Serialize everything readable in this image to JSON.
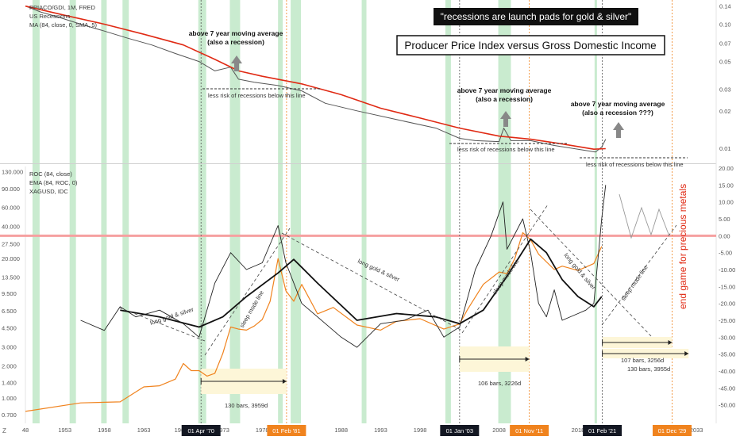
{
  "colors": {
    "recession": "#b7e4bf",
    "ma": "#e02a14",
    "ppi": "#555555",
    "xag": "#f0831e",
    "ema": "#111111",
    "roc": "#222222",
    "zero": "#f6a0a0",
    "vline": "#f0831e",
    "box": "#fdf6d8"
  },
  "top_pane": {
    "legend": [
      "PPIACO/GDI, 1M, FRED",
      "US Recessions",
      "MA (84, close, 0, SMA, 5)"
    ],
    "y_ticks": [
      "0.14",
      "0.10",
      "0.07",
      "0.05",
      "0.03",
      "0.02",
      "0.01"
    ],
    "title_quote": "\"recessions are launch pads for gold & silver\"",
    "title_main": "Producer Price Index versus Gross Domestic Income",
    "annotations": [
      {
        "line1": "above 7 year moving average",
        "line2": "(also a recession)"
      },
      {
        "line1": "above 7 year moving average",
        "line2": "(also a recession)"
      },
      {
        "line1": "above 7 year moving average",
        "line2": "(also a recession ???)"
      }
    ],
    "notes": [
      "less risk of recessions below this line",
      "less risk of recessions below this line",
      "less risk of recessions below this line"
    ]
  },
  "bottom_pane": {
    "legend": [
      "ROC (84, close)",
      "EMA (84, ROC, 0)",
      "XAGUSD, IDC"
    ],
    "y_left_ticks": [
      "130.000",
      "90.000",
      "60.000",
      "40.000",
      "27.500",
      "20.000",
      "13.500",
      "9.500",
      "6.500",
      "4.500",
      "3.000",
      "2.000",
      "1.400",
      "1.000",
      "0.700"
    ],
    "y_right_ticks": [
      "20.00",
      "15.00",
      "10.00",
      "5.00",
      "0.00",
      "-5.00",
      "-10.00",
      "-15.00",
      "-20.00",
      "-25.00",
      "-30.00",
      "-35.00",
      "-40.00",
      "-45.00",
      "-50.00"
    ],
    "diagonal_labels": [
      "long gold & silver",
      "sleep mode line",
      "long gold & silver",
      "sleep mode line",
      "long gold & silver",
      "sleep mode line"
    ],
    "measures": [
      "130 bars, 3959d",
      "106 bars, 3226d",
      "107 bars, 3256d",
      "130 bars, 3955d"
    ],
    "side_text": "end game for precious metals"
  },
  "x_axis": {
    "ticks": [
      "48",
      "1953",
      "1958",
      "1963",
      "196",
      "1973",
      "1978",
      "1988",
      "1993",
      "1998",
      "2008",
      "2018",
      "'23",
      "20",
      "2033"
    ],
    "markers": [
      {
        "label": "01 Apr '70",
        "style": "dark"
      },
      {
        "label": "01 Feb '81",
        "style": "orange"
      },
      {
        "label": "01 Jan '03",
        "style": "dark"
      },
      {
        "label": "01 Nov '11",
        "style": "orange"
      },
      {
        "label": "01 Feb '21",
        "style": "dark"
      },
      {
        "label": "01 Dec '29",
        "style": "orange"
      }
    ],
    "z_label": "Z"
  },
  "chart_data": [
    {
      "type": "line",
      "title": "Producer Price Index versus Gross Domestic Income",
      "yscale": "log",
      "x_range": [
        1948,
        2035
      ],
      "ylim": [
        0.008,
        0.15
      ],
      "recessions": [
        [
          1948.9,
          1949.8
        ],
        [
          1953.6,
          1954.4
        ],
        [
          1957.6,
          1958.3
        ],
        [
          1960.3,
          1961.1
        ],
        [
          1969.9,
          1970.9
        ],
        [
          1973.9,
          1975.2
        ],
        [
          1980.0,
          1980.6
        ],
        [
          1981.6,
          1982.9
        ],
        [
          1990.6,
          1991.2
        ],
        [
          2001.2,
          2001.9
        ],
        [
          2007.9,
          2009.5
        ],
        [
          2020.1,
          2020.4
        ]
      ],
      "series": [
        {
          "name": "PPIACO/GDI",
          "x": [
            1948,
            1950,
            1952,
            1955,
            1958,
            1961,
            1964,
            1967,
            1970,
            1972,
            1974,
            1975,
            1977,
            1980,
            1983,
            1986,
            1990,
            1995,
            2000,
            2003,
            2005,
            2008,
            2008.6,
            2009.5,
            2012,
            2015,
            2018,
            2020.2,
            2021,
            2021.5
          ],
          "y": [
            0.14,
            0.125,
            0.115,
            0.1,
            0.088,
            0.077,
            0.068,
            0.058,
            0.05,
            0.042,
            0.045,
            0.036,
            0.034,
            0.032,
            0.029,
            0.023,
            0.02,
            0.017,
            0.0145,
            0.012,
            0.0115,
            0.0113,
            0.0145,
            0.0115,
            0.0115,
            0.0105,
            0.0098,
            0.0093,
            0.0102,
            0.0118
          ]
        },
        {
          "name": "MA (84, close, 0, SMA, 5)",
          "x": [
            1948,
            1953,
            1958,
            1963,
            1968,
            1972,
            1975,
            1978,
            1983,
            1988,
            1993,
            1998,
            2003,
            2008,
            2012,
            2016,
            2020,
            2021.5
          ],
          "y": [
            0.14,
            0.118,
            0.1,
            0.083,
            0.068,
            0.052,
            0.042,
            0.038,
            0.033,
            0.027,
            0.021,
            0.0175,
            0.0145,
            0.0125,
            0.0118,
            0.0108,
            0.0098,
            0.0099
          ]
        }
      ]
    },
    {
      "type": "line",
      "yscale_left": "log",
      "ylim_left": [
        0.6,
        140
      ],
      "ylim_right": [
        -55,
        20
      ],
      "x_range": [
        1948,
        2035
      ],
      "series": [
        {
          "name": "XAGUSD",
          "axis": "left",
          "x": [
            1948,
            1955,
            1960,
            1963,
            1965,
            1967,
            1968,
            1969,
            1970,
            1971,
            1972,
            1973,
            1974,
            1975,
            1976,
            1977,
            1978,
            1979,
            1980,
            1981,
            1982,
            1983,
            1985,
            1987,
            1990,
            1993,
            1995,
            1998,
            2001,
            2003,
            2004,
            2006,
            2008,
            2009,
            2010,
            2011,
            2012,
            2013,
            2015,
            2016,
            2018,
            2020,
            2021
          ],
          "y": [
            0.75,
            0.9,
            0.92,
            1.27,
            1.3,
            1.5,
            2.1,
            1.8,
            1.8,
            1.6,
            1.7,
            2.6,
            4.6,
            4.4,
            4.3,
            4.7,
            5.4,
            8.0,
            20.0,
            10.0,
            8.0,
            11.5,
            6.1,
            7.0,
            4.8,
            4.3,
            5.2,
            5.5,
            4.4,
            4.9,
            6.7,
            11.5,
            15.0,
            14.5,
            20.0,
            35.0,
            30.0,
            22.0,
            15.8,
            17.0,
            15.5,
            18.0,
            26.0
          ]
        },
        {
          "name": "ROC (84, close)",
          "axis": "right",
          "x": [
            1955,
            1958,
            1960,
            1962,
            1965,
            1968,
            1970,
            1972,
            1974,
            1976,
            1978,
            1980,
            1981,
            1983,
            1985,
            1988,
            1990,
            1993,
            1996,
            1999,
            2001,
            2003,
            2005,
            2007,
            2008.5,
            2009,
            2011,
            2012,
            2013,
            2014,
            2015,
            2016,
            2018,
            2019,
            2020,
            2021,
            2021.5
          ],
          "y": [
            -25,
            -28,
            -21,
            -24,
            -22,
            -26,
            -30,
            -14,
            -5,
            -10,
            -8,
            3,
            -8,
            -20,
            -24,
            -30,
            -33,
            -26,
            -25,
            -22,
            -30,
            -27,
            -10,
            0,
            10,
            -4,
            5,
            -5,
            -20,
            -24,
            -16,
            -25,
            -23,
            -22,
            -20,
            5,
            15
          ]
        },
        {
          "name": "EMA (84, ROC, 0)",
          "axis": "right",
          "x": [
            1960,
            1965,
            1970,
            1973,
            1976,
            1980,
            1982,
            1985,
            1990,
            1995,
            2000,
            2003,
            2006,
            2009,
            2012,
            2014,
            2016,
            2018,
            2020,
            2021
          ],
          "y": [
            -22,
            -24,
            -27,
            -24,
            -18,
            -11,
            -7,
            -14,
            -25,
            -23,
            -24,
            -26,
            -22,
            -12,
            -1,
            -5,
            -13,
            -18,
            -21,
            -18
          ]
        }
      ]
    }
  ]
}
